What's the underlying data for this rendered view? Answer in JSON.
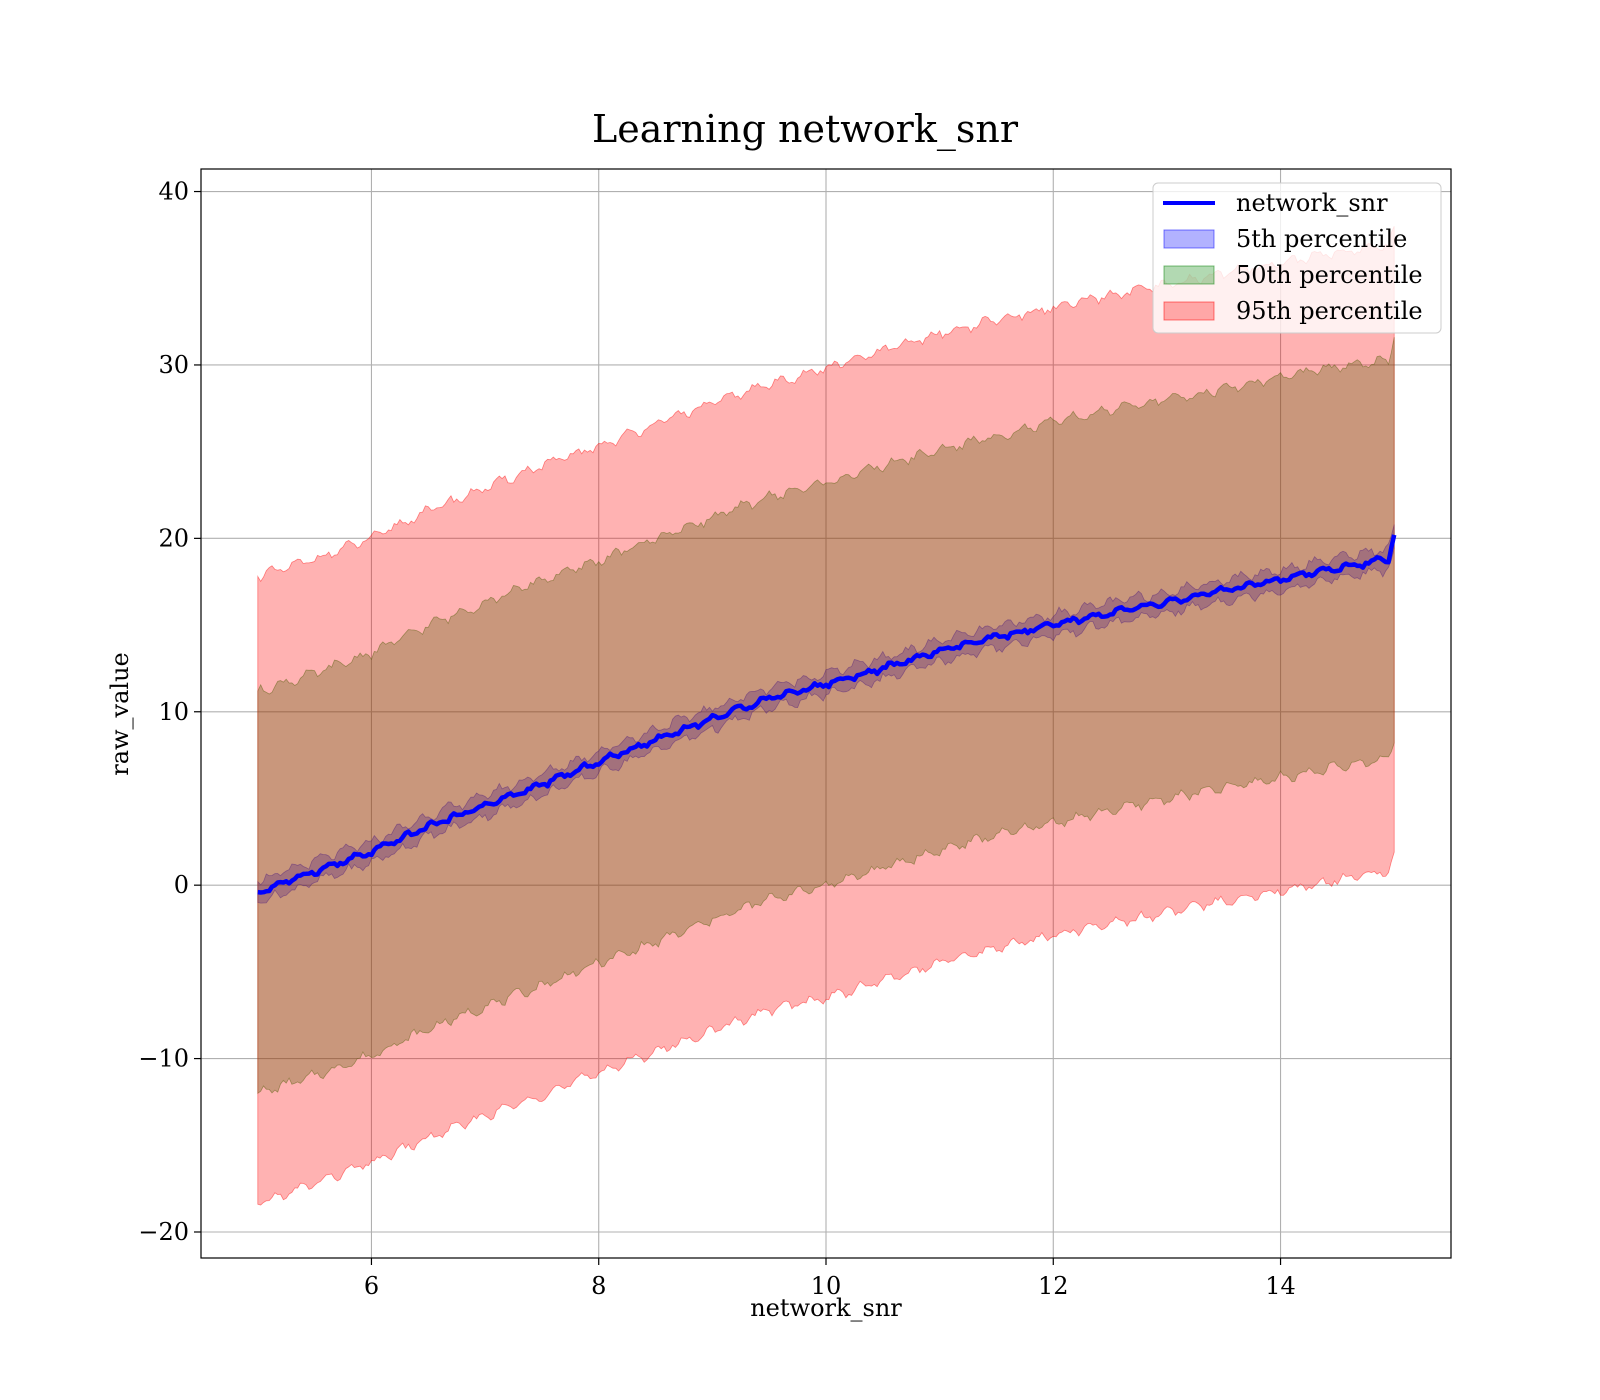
{
  "chart_data": {
    "type": "area",
    "title": "Learning network_snr",
    "xlabel": "network_snr",
    "ylabel": "raw_value",
    "xlim": [
      4.5,
      15.5
    ],
    "ylim": [
      -21.5,
      41.3
    ],
    "xticks": [
      6,
      8,
      10,
      12,
      14
    ],
    "xtick_labels": [
      "6",
      "8",
      "10",
      "12",
      "14"
    ],
    "yticks": [
      -20,
      -10,
      0,
      10,
      20,
      30,
      40
    ],
    "ytick_labels": [
      "−20",
      "−10",
      "0",
      "10",
      "20",
      "30",
      "40"
    ],
    "grid": true,
    "legend_position": "top-right",
    "series": [
      {
        "name": "network_snr",
        "kind": "line",
        "color": "#0000ff",
        "x": [
          5.0,
          5.5,
          6.0,
          6.5,
          7.0,
          7.5,
          8.0,
          8.5,
          9.0,
          9.5,
          10.0,
          10.5,
          11.0,
          11.5,
          12.0,
          12.5,
          13.0,
          13.5,
          14.0,
          14.5,
          14.95,
          15.0
        ],
        "y": [
          -0.4,
          0.8,
          1.9,
          3.4,
          4.6,
          5.8,
          7.1,
          8.4,
          9.6,
          10.8,
          11.6,
          12.5,
          13.5,
          14.3,
          15.0,
          15.7,
          16.3,
          17.0,
          17.6,
          18.3,
          18.8,
          20.2
        ]
      },
      {
        "name": "5th percentile",
        "kind": "band",
        "color": "#0000ff",
        "opacity": 0.3,
        "x": [
          5.0,
          5.5,
          6.0,
          6.5,
          7.0,
          7.5,
          8.0,
          8.5,
          9.0,
          9.5,
          10.0,
          10.5,
          11.0,
          11.5,
          12.0,
          12.5,
          13.0,
          13.5,
          14.0,
          14.5,
          14.95,
          15.0
        ],
        "lower": [
          -1.0,
          0.2,
          1.3,
          2.8,
          4.0,
          5.2,
          6.5,
          7.8,
          9.0,
          10.2,
          11.0,
          11.9,
          12.9,
          13.7,
          14.4,
          15.1,
          15.7,
          16.4,
          17.0,
          17.7,
          18.2,
          19.4
        ],
        "upper": [
          0.2,
          1.4,
          2.5,
          4.0,
          5.2,
          6.4,
          7.7,
          9.0,
          10.2,
          11.4,
          12.2,
          13.1,
          14.1,
          14.9,
          15.6,
          16.3,
          16.9,
          17.6,
          18.2,
          18.9,
          19.4,
          20.8
        ]
      },
      {
        "name": "50th percentile",
        "kind": "band",
        "color": "#008000",
        "opacity": 0.3,
        "x": [
          5.0,
          5.5,
          6.0,
          6.5,
          7.0,
          7.5,
          8.0,
          8.5,
          9.0,
          9.5,
          10.0,
          10.5,
          11.0,
          11.5,
          12.0,
          12.5,
          13.0,
          13.5,
          14.0,
          14.5,
          14.95,
          15.0
        ],
        "lower": [
          -12.0,
          -11.0,
          -9.8,
          -8.3,
          -7.0,
          -5.8,
          -4.5,
          -3.3,
          -2.0,
          -0.8,
          0.0,
          1.0,
          2.0,
          2.9,
          3.6,
          4.3,
          5.0,
          5.6,
          6.2,
          6.8,
          7.3,
          8.2
        ],
        "upper": [
          11.2,
          12.2,
          13.4,
          15.0,
          16.3,
          17.6,
          18.7,
          20.0,
          21.2,
          22.4,
          23.2,
          24.2,
          25.1,
          25.9,
          26.7,
          27.4,
          28.0,
          28.6,
          29.3,
          29.9,
          30.2,
          31.6
        ]
      },
      {
        "name": "95th percentile",
        "kind": "band",
        "color": "#ff0000",
        "opacity": 0.3,
        "x": [
          5.0,
          5.5,
          6.0,
          6.5,
          7.0,
          7.5,
          8.0,
          8.5,
          9.0,
          9.5,
          10.0,
          10.5,
          11.0,
          11.5,
          12.0,
          12.5,
          13.0,
          13.5,
          14.0,
          14.5,
          14.95,
          15.0
        ],
        "lower": [
          -18.4,
          -17.2,
          -16.0,
          -14.6,
          -13.3,
          -12.1,
          -10.8,
          -9.6,
          -8.4,
          -7.2,
          -6.5,
          -5.5,
          -4.5,
          -3.6,
          -2.9,
          -2.2,
          -1.6,
          -0.9,
          -0.3,
          0.3,
          0.8,
          1.9
        ],
        "upper": [
          17.8,
          18.8,
          20.0,
          21.6,
          22.9,
          24.2,
          25.3,
          26.6,
          27.8,
          28.9,
          29.8,
          30.8,
          31.8,
          32.6,
          33.3,
          34.0,
          34.6,
          35.3,
          35.9,
          36.5,
          36.9,
          38.0
        ]
      }
    ]
  }
}
